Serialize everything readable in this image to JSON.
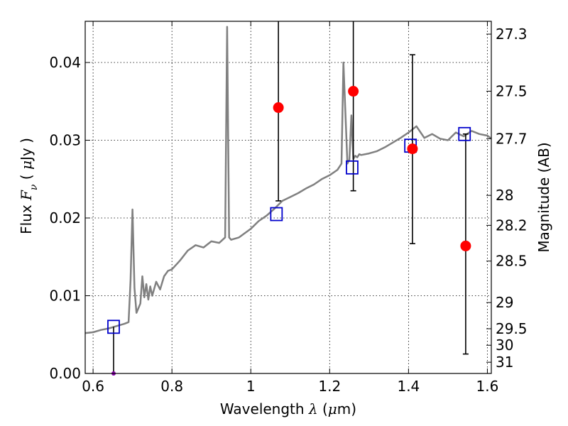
{
  "chart_data": {
    "type": "line",
    "xlabel_parts": {
      "pre": "Wavelength  ",
      "sym": "λ",
      "unit_open": " (",
      "mu": "μ",
      "unit_close": "m)"
    },
    "ylabel_parts": {
      "pre": "Flux  ",
      "sym": "F",
      "sub": "ν",
      "unit_open": "  (  ",
      "mu": "μ",
      "unit_close": "Jy  )"
    },
    "y2label": "Magnitude (AB)",
    "xlim": [
      0.58,
      1.61
    ],
    "ylim": [
      0.0,
      0.0453
    ],
    "grid": true,
    "x_ticks": [
      0.6,
      0.8,
      1.0,
      1.2,
      1.4,
      1.6
    ],
    "x_tick_labels": [
      "0.6",
      "0.8",
      "1",
      "1.2",
      "1.4",
      "1.6"
    ],
    "y_ticks": [
      0.0,
      0.01,
      0.02,
      0.03,
      0.04
    ],
    "y_tick_labels": [
      "0.00",
      "0.01",
      "0.02",
      "0.03",
      "0.04"
    ],
    "mag_ticks": [
      27.3,
      27.5,
      27.7,
      28,
      28.2,
      28.5,
      29,
      29.5,
      30,
      31
    ],
    "mag_tick_labels": [
      "27.3",
      "27.5",
      "27.7",
      "28",
      "28.2",
      "28.5",
      "29",
      "29.5",
      "30",
      "31"
    ],
    "colors": {
      "model": "#808080",
      "observed": "#ff0000",
      "synthetic": "#0000cc",
      "errorbar": "#000000",
      "limit_marker": "#8800aa"
    },
    "series": [
      {
        "type": "line",
        "x": [
          0.58,
          0.6,
          0.62,
          0.64,
          0.66,
          0.68,
          0.69,
          0.695,
          0.7,
          0.705,
          0.71,
          0.72,
          0.725,
          0.73,
          0.735,
          0.74,
          0.745,
          0.75,
          0.76,
          0.77,
          0.78,
          0.79,
          0.8,
          0.82,
          0.84,
          0.86,
          0.88,
          0.9,
          0.92,
          0.935,
          0.94,
          0.945,
          0.95,
          0.97,
          1.0,
          1.02,
          1.04,
          1.06,
          1.08,
          1.1,
          1.12,
          1.14,
          1.16,
          1.18,
          1.2,
          1.22,
          1.23,
          1.235,
          1.24,
          1.245,
          1.25,
          1.255,
          1.26,
          1.265,
          1.27,
          1.275,
          1.28,
          1.3,
          1.32,
          1.34,
          1.36,
          1.38,
          1.4,
          1.42,
          1.44,
          1.46,
          1.48,
          1.5,
          1.52,
          1.54,
          1.56,
          1.58,
          1.6,
          1.61
        ],
        "y": [
          0.0052,
          0.0053,
          0.0056,
          0.0058,
          0.0061,
          0.0064,
          0.0066,
          0.012,
          0.0211,
          0.011,
          0.0078,
          0.009,
          0.0125,
          0.0098,
          0.0115,
          0.0095,
          0.0112,
          0.01,
          0.0118,
          0.0108,
          0.0125,
          0.0132,
          0.0134,
          0.0145,
          0.0158,
          0.0165,
          0.0162,
          0.017,
          0.0168,
          0.0175,
          0.0446,
          0.0175,
          0.0172,
          0.0175,
          0.0186,
          0.0196,
          0.0203,
          0.0212,
          0.0222,
          0.0227,
          0.0232,
          0.0238,
          0.0243,
          0.025,
          0.0255,
          0.0262,
          0.027,
          0.04,
          0.0335,
          0.027,
          0.0275,
          0.0332,
          0.0276,
          0.028,
          0.0278,
          0.0282,
          0.0281,
          0.0283,
          0.0286,
          0.0291,
          0.0297,
          0.0303,
          0.031,
          0.0318,
          0.0303,
          0.0308,
          0.0302,
          0.03,
          0.031,
          0.0305,
          0.0312,
          0.0308,
          0.0306,
          0.0302
        ]
      },
      {
        "type": "scatter",
        "marker": "filled-circle",
        "x": [
          1.07,
          1.26,
          1.41,
          1.545
        ],
        "y": [
          0.0342,
          0.0363,
          0.0289,
          0.0164
        ],
        "err_low": [
          0.0222,
          0.0235,
          0.0167,
          0.0025
        ],
        "err_high": [
          0.046,
          0.046,
          0.041,
          0.0308
        ]
      },
      {
        "type": "scatter",
        "marker": "open-square",
        "x": [
          0.652,
          1.065,
          1.257,
          1.405,
          1.542
        ],
        "y": [
          0.006,
          0.0205,
          0.0265,
          0.0293,
          0.0308
        ]
      },
      {
        "type": "upper-limit",
        "x": [
          0.652
        ],
        "y": [
          0.0
        ],
        "err_high": [
          0.006
        ]
      }
    ]
  }
}
